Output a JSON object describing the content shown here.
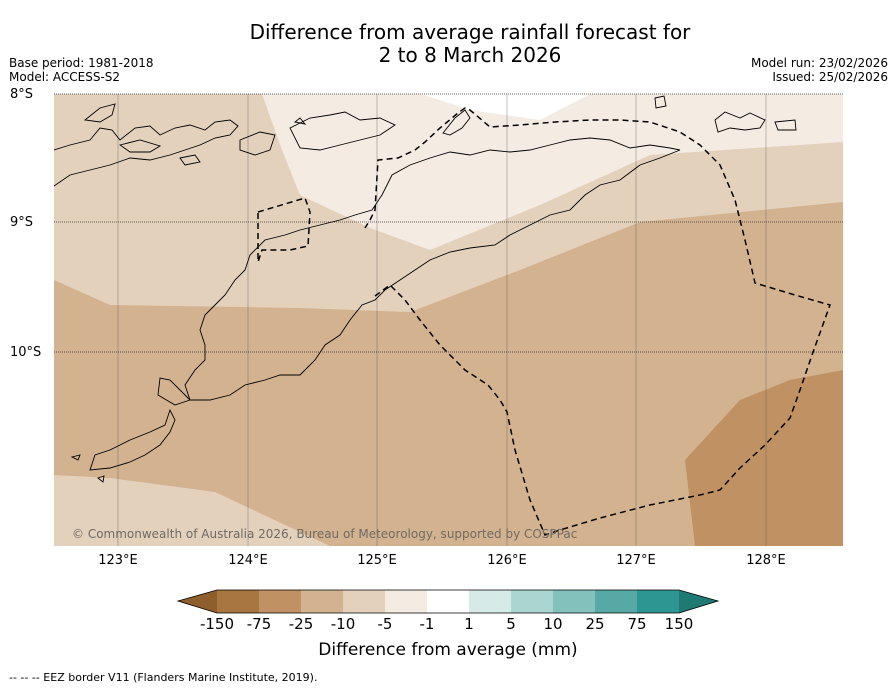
{
  "title_line1": "Difference from average rainfall forecast for",
  "title_line2": "2 to 8 March 2026",
  "base_period": "Base period: 1981-2018",
  "model": "Model: ACCESS-S2",
  "model_run": "Model run: 23/02/2026",
  "issued": "Issued: 25/02/2026",
  "lat_labels": [
    "8°S",
    "9°S",
    "10°S"
  ],
  "lon_labels": [
    "123°E",
    "124°E",
    "125°E",
    "126°E",
    "127°E",
    "128°E"
  ],
  "copyright": "© Commonwealth of Australia 2026, Bureau of Meteorology, supported by COSPPac",
  "colorbar": {
    "ticks": [
      "-150",
      "-75",
      "-25",
      "-10",
      "-5",
      "-1",
      "1",
      "5",
      "10",
      "25",
      "75",
      "150"
    ],
    "colors": [
      "#a87641",
      "#bf9163",
      "#d3b290",
      "#e4d1bc",
      "#f4ebe3",
      "#ffffff",
      "#d6ebe8",
      "#abd5d1",
      "#82c1bc",
      "#56a9a5",
      "#2d9692"
    ],
    "under_color": "#8e5e2c",
    "over_color": "#1f7a74",
    "label": "Difference from average (mm)"
  },
  "footer": "--  --  -- EEZ border V11 (Flanders Marine Institute, 2019)."
}
